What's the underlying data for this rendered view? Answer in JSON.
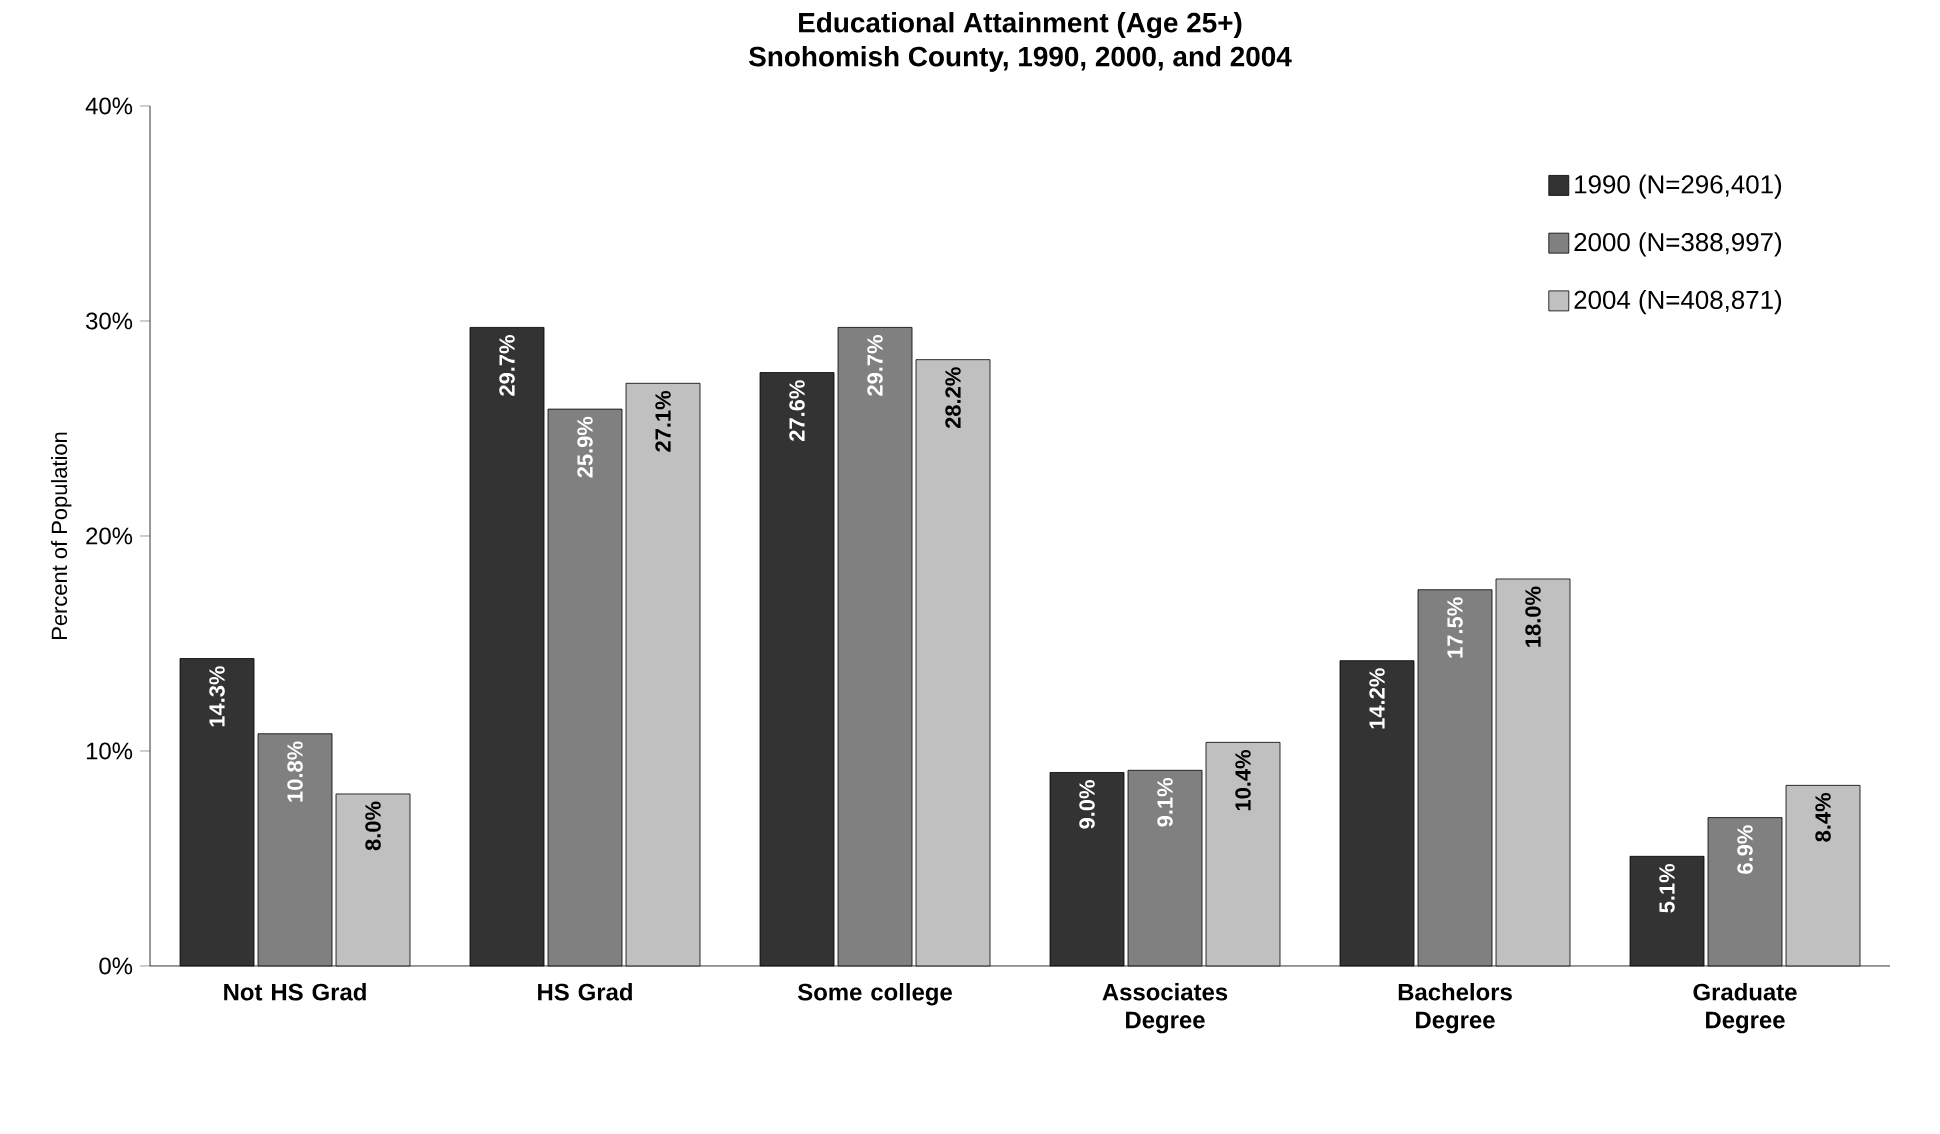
{
  "chart_data": {
    "type": "bar",
    "title": "Educational Attainment (Age 25+)",
    "subtitle": "Snohomish County, 1990, 2000, and 2004",
    "ylabel": "Percent of Population",
    "categories": [
      "Not HS Grad",
      "HS Grad",
      "Some college",
      "Associates Degree",
      "Bachelors Degree",
      "Graduate Degree"
    ],
    "series": [
      {
        "name": "1990 (N=296,401)",
        "color": "#333333",
        "values": [
          14.3,
          29.7,
          27.6,
          9.0,
          14.2,
          5.1
        ],
        "value_labels": [
          "14.3%",
          "29.7%",
          "27.6%",
          "9.0%",
          "14.2%",
          "5.1%"
        ]
      },
      {
        "name": "2000 (N=388,997)",
        "color": "#808080",
        "values": [
          10.8,
          25.9,
          29.7,
          9.1,
          17.5,
          6.9
        ],
        "value_labels": [
          "10.8%",
          "25.9%",
          "29.7%",
          "9.1%",
          "17.5%",
          "6.9%"
        ]
      },
      {
        "name": "2004 (N=408,871)",
        "color": "#c0c0c0",
        "values": [
          8.0,
          27.1,
          28.2,
          10.4,
          18.0,
          8.4
        ],
        "value_labels": [
          "8.0%",
          "27.1%",
          "28.2%",
          "10.4%",
          "18.0%",
          "8.4%"
        ]
      }
    ],
    "ylim": [
      0,
      40
    ],
    "yticks": [
      {
        "value": 0,
        "label": "0%"
      },
      {
        "value": 10,
        "label": "10%"
      },
      {
        "value": 20,
        "label": "20%"
      },
      {
        "value": 30,
        "label": "30%"
      },
      {
        "value": 40,
        "label": "40%"
      }
    ],
    "grid": false,
    "legend": "top right"
  }
}
